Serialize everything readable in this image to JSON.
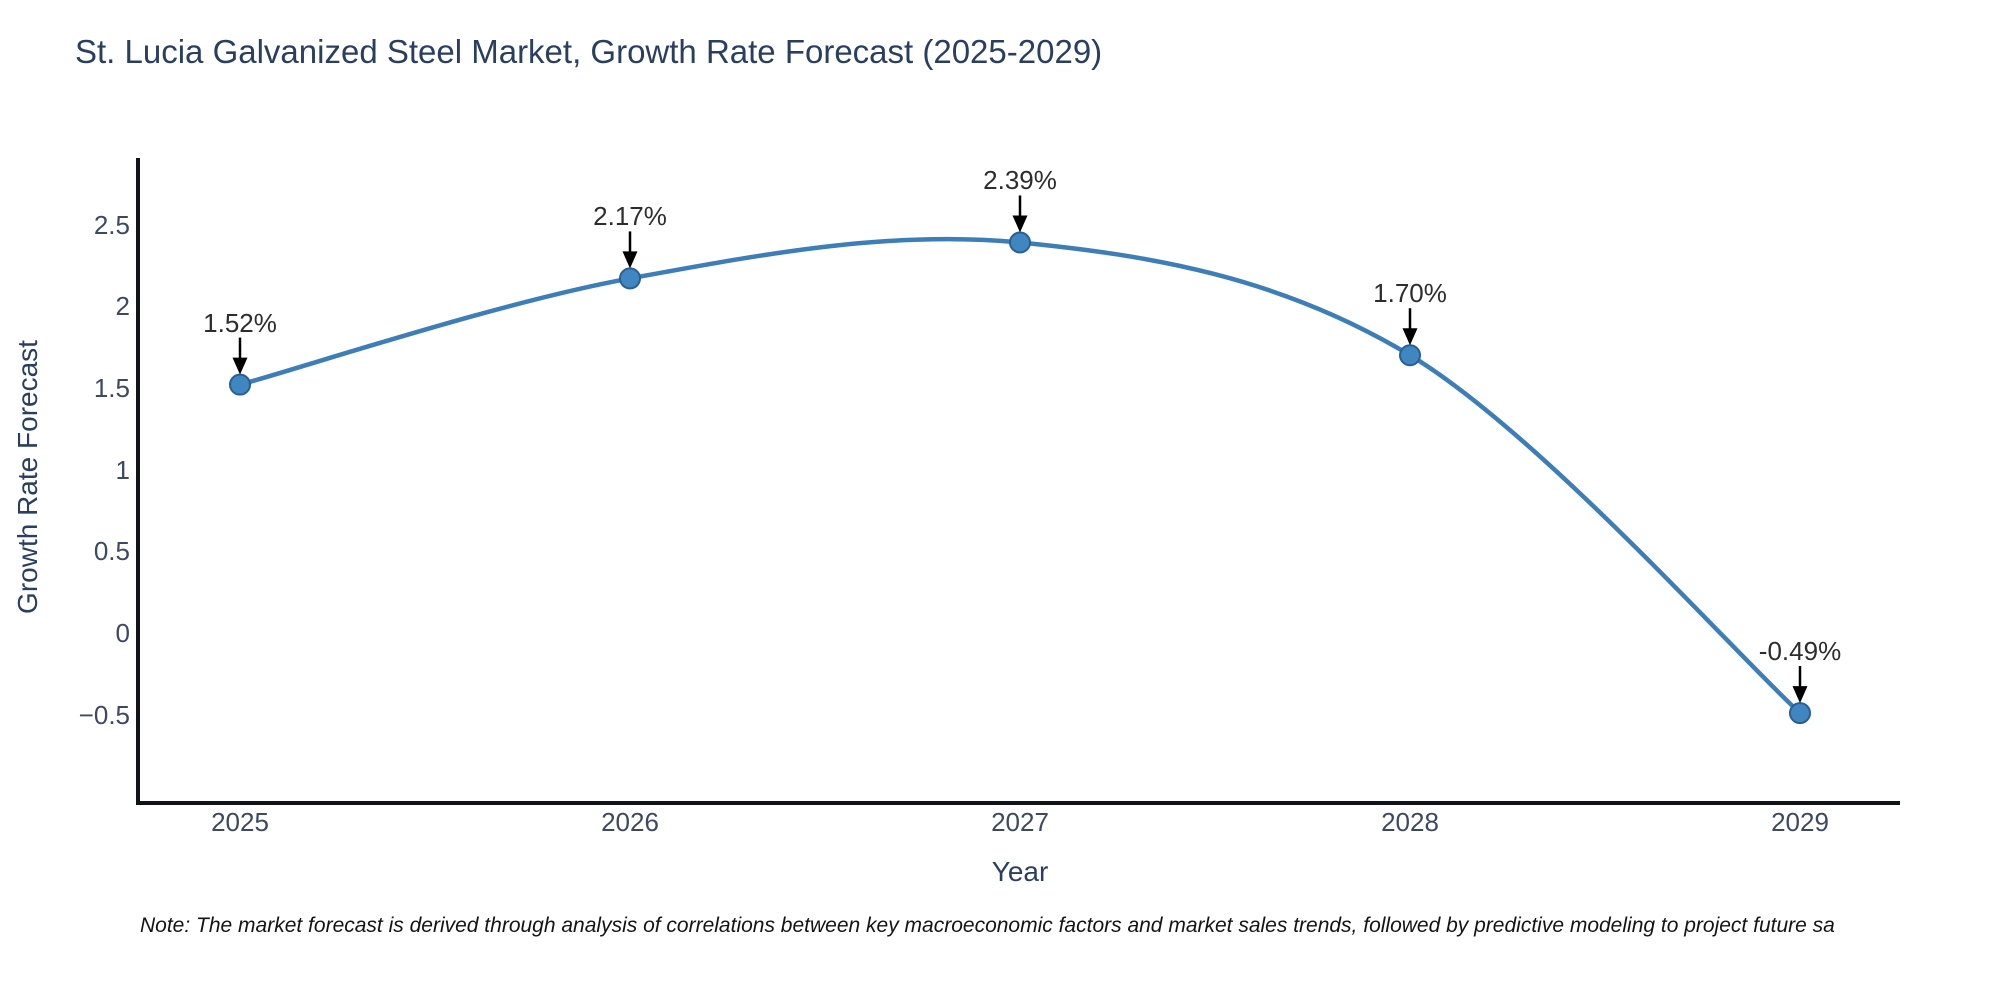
{
  "chart": {
    "title": "St. Lucia Galvanized Steel Market, Growth Rate Forecast (2025-2029)",
    "ylabel": "Growth Rate Forecast",
    "xlabel": "Year",
    "note": "Note: The market forecast is derived through analysis of correlations between key macroeconomic factors and market sales trends, followed by predictive modeling to project future sa"
  },
  "chart_data": {
    "type": "line",
    "title": "St. Lucia Galvanized Steel Market, Growth Rate Forecast (2025-2029)",
    "xlabel": "Year",
    "ylabel": "Growth Rate Forecast",
    "x": [
      2025,
      2026,
      2027,
      2028,
      2029
    ],
    "values": [
      1.52,
      2.17,
      2.39,
      1.7,
      -0.49
    ],
    "point_labels": [
      "1.52%",
      "2.17%",
      "2.39%",
      "1.70%",
      "-0.49%"
    ],
    "xticks": [
      "2025",
      "2026",
      "2027",
      "2028",
      "2029"
    ],
    "yticks": [
      2.5,
      2,
      1.5,
      1,
      0.5,
      0,
      -0.5
    ],
    "ytick_labels": [
      "2.5",
      "2",
      "1.5",
      "1",
      "0.5",
      "0",
      "−0.5"
    ],
    "ylim": [
      -1.0,
      2.9
    ],
    "grid": false,
    "legend": "none",
    "line_smoothing": "spline",
    "annotations": "value labels with downward arrows above each point",
    "colors": {
      "line": "#3d7db8",
      "marker": "#4087c2",
      "marker_edge": "#2a5f93",
      "arrow": "#000000",
      "spine": "#111318",
      "title": "#2a3f5f",
      "tick": "#3c4961",
      "annotation": "#2d2d2d"
    }
  }
}
